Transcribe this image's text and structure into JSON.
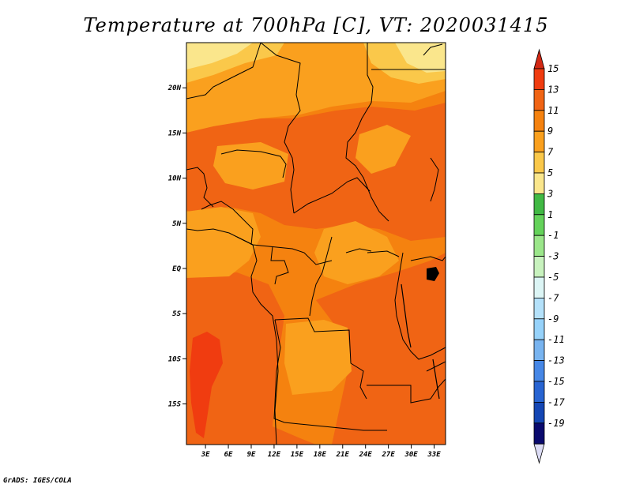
{
  "title": "Temperature at 700hPa [C], VT: 2020031415",
  "credit": "GrADS: IGES/COLA",
  "map": {
    "lat_labels": [
      "20N",
      "15N",
      "10N",
      "5N",
      "EQ",
      "5S",
      "10S",
      "15S"
    ],
    "lat_values": [
      20,
      15,
      10,
      5,
      0,
      -5,
      -10,
      -15
    ],
    "lon_labels": [
      "3E",
      "6E",
      "9E",
      "12E",
      "15E",
      "18E",
      "21E",
      "24E",
      "27E",
      "30E",
      "33E"
    ],
    "lon_values": [
      3,
      6,
      9,
      12,
      15,
      18,
      21,
      24,
      27,
      30,
      33
    ],
    "lon_range": [
      0.5,
      34.5
    ],
    "lat_range": [
      -19.5,
      25
    ]
  },
  "colorbar": {
    "labels": [
      "15",
      "13",
      "11",
      "9",
      "7",
      "5",
      "3",
      "1",
      "-1",
      "-3",
      "-5",
      "-7",
      "-9",
      "-11",
      "-13",
      "-15",
      "-17",
      "-19"
    ],
    "colors": [
      "#f03c10",
      "#f06414",
      "#f5820f",
      "#faa01e",
      "#fac84a",
      "#fae68c",
      "#41b944",
      "#64d25a",
      "#9be68a",
      "#c8f2be",
      "#dcf5f5",
      "#b4e1fa",
      "#96d2fa",
      "#78b4f0",
      "#4687e6",
      "#2864d2",
      "#1446b4",
      "#0a0a6e"
    ],
    "top_arrow": "#d22814",
    "bottom_arrow": "#dcdcf5"
  }
}
